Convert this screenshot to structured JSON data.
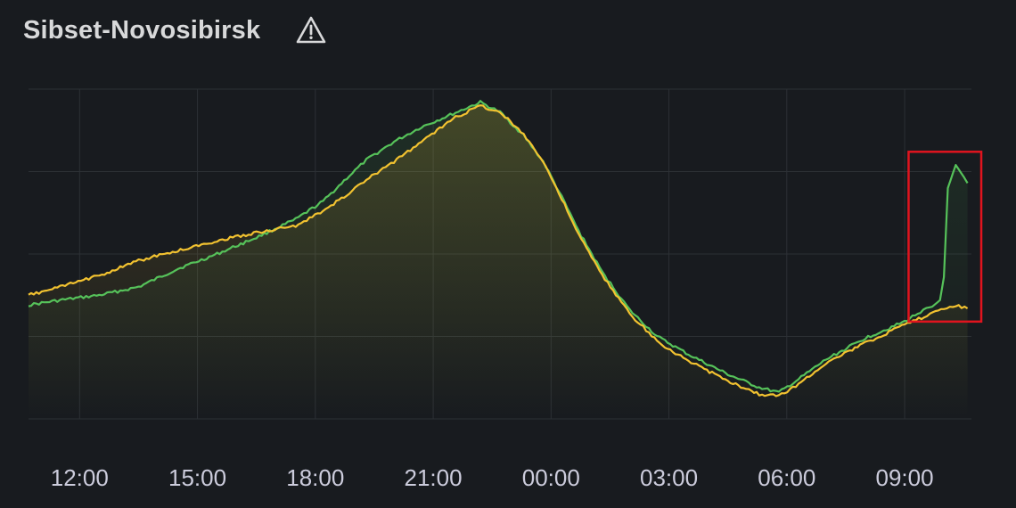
{
  "panel": {
    "title": "Sibset-Novosibirsk",
    "status_icon": "warning-triangle-icon"
  },
  "colors": {
    "background": "#181b1f",
    "grid": "#2c3035",
    "series_green": "#56c25a",
    "series_yellow": "#f2c230",
    "highlight_box": "#e0141e"
  },
  "chart_data": {
    "type": "line",
    "title": "Sibset-Novosibirsk",
    "xlabel": "",
    "ylabel": "",
    "x_unit": "hour of day (day 1, continuing past 24 into day 2)",
    "x_ticks": [
      12,
      15,
      18,
      21,
      24,
      27,
      30,
      33
    ],
    "x_tick_labels": [
      "12:00",
      "15:00",
      "18:00",
      "21:00",
      "00:00",
      "03:00",
      "06:00",
      "09:00"
    ],
    "xlim": [
      10.7,
      34.7
    ],
    "ylim": [
      0,
      100
    ],
    "y_ticks_labeled": false,
    "grid": true,
    "legend": "none",
    "series": [
      {
        "color": "#56c25a",
        "points": [
          [
            10.7,
            34.5
          ],
          [
            11.5,
            36.0
          ],
          [
            12.5,
            37.5
          ],
          [
            13.5,
            40.0
          ],
          [
            14.5,
            45.5
          ],
          [
            15.5,
            50.0
          ],
          [
            16.5,
            55.0
          ],
          [
            17.5,
            60.5
          ],
          [
            18.2,
            66.0
          ],
          [
            18.8,
            73.0
          ],
          [
            19.3,
            78.5
          ],
          [
            20.0,
            84.0
          ],
          [
            20.7,
            88.5
          ],
          [
            21.5,
            92.5
          ],
          [
            22.2,
            96.0
          ],
          [
            22.7,
            93.0
          ],
          [
            23.3,
            86.0
          ],
          [
            23.8,
            78.0
          ],
          [
            24.2,
            69.0
          ],
          [
            24.7,
            57.0
          ],
          [
            25.3,
            44.5
          ],
          [
            26.0,
            33.0
          ],
          [
            26.7,
            25.0
          ],
          [
            27.5,
            19.5
          ],
          [
            28.5,
            13.5
          ],
          [
            29.3,
            9.5
          ],
          [
            29.8,
            8.0
          ],
          [
            30.3,
            12.0
          ],
          [
            31.0,
            18.0
          ],
          [
            32.0,
            24.5
          ],
          [
            33.0,
            29.5
          ],
          [
            33.4,
            32.5
          ],
          [
            33.7,
            34.0
          ],
          [
            33.9,
            36.0
          ],
          [
            34.0,
            43.0
          ],
          [
            34.1,
            70.0
          ],
          [
            34.3,
            77.0
          ],
          [
            34.5,
            73.5
          ],
          [
            34.6,
            71.5
          ]
        ]
      },
      {
        "color": "#f2c230",
        "points": [
          [
            10.7,
            37.5
          ],
          [
            11.5,
            40.0
          ],
          [
            12.5,
            43.5
          ],
          [
            13.5,
            48.0
          ],
          [
            14.5,
            51.0
          ],
          [
            15.5,
            54.0
          ],
          [
            16.5,
            56.5
          ],
          [
            17.5,
            58.5
          ],
          [
            18.2,
            63.0
          ],
          [
            18.8,
            68.0
          ],
          [
            19.3,
            72.5
          ],
          [
            20.0,
            78.0
          ],
          [
            20.7,
            84.0
          ],
          [
            21.5,
            91.0
          ],
          [
            22.2,
            95.0
          ],
          [
            22.7,
            93.0
          ],
          [
            23.3,
            86.5
          ],
          [
            23.8,
            78.0
          ],
          [
            24.2,
            68.5
          ],
          [
            24.7,
            56.0
          ],
          [
            25.3,
            43.5
          ],
          [
            26.0,
            32.0
          ],
          [
            26.7,
            23.5
          ],
          [
            27.5,
            17.5
          ],
          [
            28.5,
            11.5
          ],
          [
            29.3,
            7.5
          ],
          [
            29.8,
            7.0
          ],
          [
            30.3,
            10.5
          ],
          [
            31.0,
            17.0
          ],
          [
            32.0,
            23.0
          ],
          [
            33.0,
            28.5
          ],
          [
            33.5,
            31.0
          ],
          [
            34.0,
            33.5
          ],
          [
            34.3,
            34.5
          ],
          [
            34.6,
            33.5
          ]
        ]
      }
    ],
    "annotations": [
      {
        "type": "box",
        "color": "#e0141e",
        "x_range": [
          33.1,
          34.95
        ],
        "y_range": [
          29.5,
          81.0
        ]
      }
    ]
  }
}
